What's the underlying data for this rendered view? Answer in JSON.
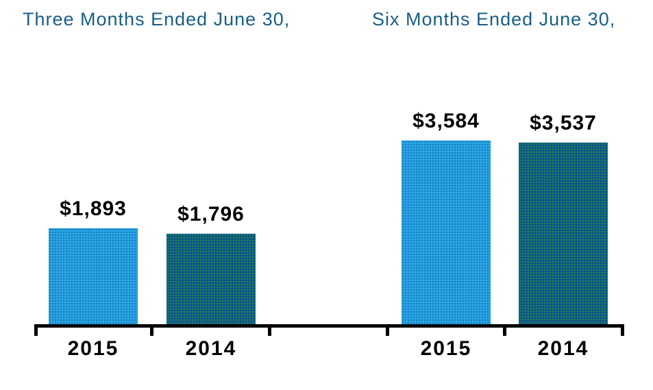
{
  "chart_data": {
    "type": "bar",
    "title": "",
    "categories": [
      "2015",
      "2014",
      "2015",
      "2014"
    ],
    "groups": [
      {
        "title": "Three Months Ended June 30,",
        "bars": [
          {
            "year": "2015",
            "value": 1893,
            "label": "$1,893",
            "series": "2015"
          },
          {
            "year": "2014",
            "value": 1796,
            "label": "$1,796",
            "series": "2014"
          }
        ]
      },
      {
        "title": "Six Months Ended June 30,",
        "bars": [
          {
            "year": "2015",
            "value": 3584,
            "label": "$3,584",
            "series": "2015"
          },
          {
            "year": "2014",
            "value": 3537,
            "label": "$3,537",
            "series": "2014"
          }
        ]
      }
    ],
    "ylim": [
      0,
      4000
    ],
    "grid": false,
    "legend": false,
    "colors": {
      "bar_2015": "#29A5E3",
      "bar_2015_dots": "#1571B8",
      "bar_2014": "#0B5884",
      "bar_2014_dots": "#2E8A52",
      "group_title_text": "#175E89",
      "value_label_text": "#000000",
      "axis": "#000000"
    }
  }
}
